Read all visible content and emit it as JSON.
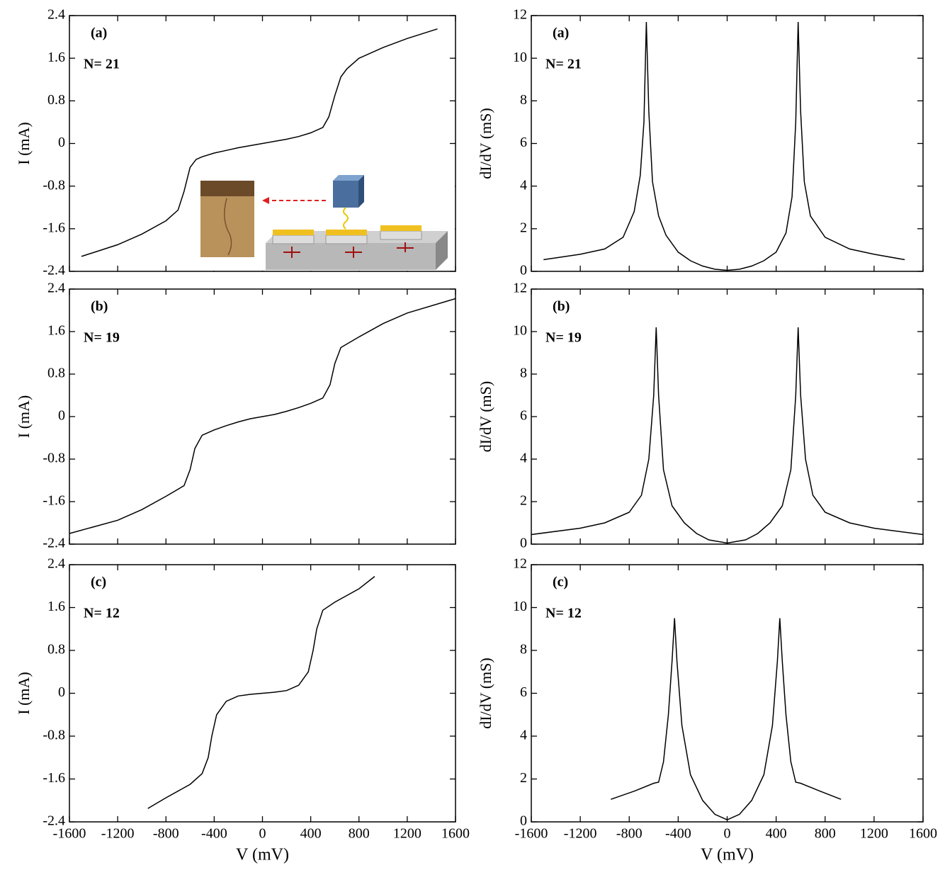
{
  "chart_data": [
    {
      "type": "line",
      "panel_label": "(a)",
      "n_label": "N= 21",
      "ylabel": "I (mA)",
      "xlim": [
        -1600,
        1600
      ],
      "xticks": [
        -1600,
        -1200,
        -800,
        -400,
        0,
        400,
        800,
        1200,
        1600
      ],
      "ylim": [
        -2.4,
        2.4
      ],
      "yticks": [
        -2.4,
        -1.6,
        -0.8,
        0,
        0.8,
        1.6,
        2.4
      ],
      "color": "#000000",
      "x": [
        -1500,
        -1200,
        -1000,
        -800,
        -700,
        -650,
        -600,
        -550,
        -500,
        -400,
        -300,
        -200,
        -100,
        0,
        100,
        200,
        300,
        400,
        500,
        550,
        600,
        650,
        700,
        800,
        1000,
        1200,
        1450
      ],
      "values": [
        -2.12,
        -1.9,
        -1.7,
        -1.45,
        -1.25,
        -0.9,
        -0.45,
        -0.3,
        -0.25,
        -0.18,
        -0.13,
        -0.08,
        -0.04,
        0,
        0.04,
        0.08,
        0.13,
        0.2,
        0.3,
        0.5,
        0.9,
        1.25,
        1.4,
        1.6,
        1.8,
        1.97,
        2.15
      ]
    },
    {
      "type": "line",
      "panel_label": "(a)",
      "n_label": "N= 21",
      "ylabel": "dI/dV (mS)",
      "xlim": [
        -1600,
        1600
      ],
      "xticks": [
        -1600,
        -1200,
        -800,
        -400,
        0,
        400,
        800,
        1200,
        1600
      ],
      "ylim": [
        0,
        12
      ],
      "yticks": [
        0,
        2,
        4,
        6,
        8,
        10,
        12
      ],
      "color": "#000000",
      "x": [
        -1500,
        -1200,
        -1000,
        -850,
        -760,
        -710,
        -680,
        -660,
        -640,
        -610,
        -560,
        -500,
        -400,
        -300,
        -200,
        -100,
        0,
        100,
        200,
        300,
        400,
        480,
        530,
        560,
        580,
        600,
        630,
        680,
        800,
        1000,
        1200,
        1450
      ],
      "values": [
        0.55,
        0.8,
        1.05,
        1.6,
        2.8,
        4.5,
        7,
        11.7,
        7.5,
        4.2,
        2.6,
        1.7,
        0.9,
        0.5,
        0.25,
        0.1,
        0.05,
        0.1,
        0.25,
        0.5,
        0.9,
        1.8,
        3.5,
        7,
        11.7,
        7.5,
        4.2,
        2.6,
        1.6,
        1.05,
        0.8,
        0.55
      ]
    },
    {
      "type": "line",
      "panel_label": "(b)",
      "n_label": "N= 19",
      "ylabel": "I (mA)",
      "xlim": [
        -1600,
        1600
      ],
      "xticks": [
        -1600,
        -1200,
        -800,
        -400,
        0,
        400,
        800,
        1200,
        1600
      ],
      "ylim": [
        -2.4,
        2.4
      ],
      "yticks": [
        -2.4,
        -1.6,
        -0.8,
        0,
        0.8,
        1.6,
        2.4
      ],
      "color": "#000000",
      "x": [
        -1600,
        -1200,
        -1000,
        -800,
        -650,
        -600,
        -560,
        -500,
        -400,
        -300,
        -200,
        -100,
        0,
        100,
        200,
        300,
        400,
        500,
        560,
        600,
        650,
        800,
        1000,
        1200,
        1600
      ],
      "values": [
        -2.2,
        -1.95,
        -1.75,
        -1.5,
        -1.3,
        -1.0,
        -0.6,
        -0.35,
        -0.25,
        -0.17,
        -0.1,
        -0.04,
        0,
        0.04,
        0.1,
        0.17,
        0.25,
        0.35,
        0.6,
        1.0,
        1.3,
        1.5,
        1.75,
        1.95,
        2.22
      ]
    },
    {
      "type": "line",
      "panel_label": "(b)",
      "n_label": "N= 19",
      "ylabel": "dI/dV (mS)",
      "xlim": [
        -1600,
        1600
      ],
      "xticks": [
        -1600,
        -1200,
        -800,
        -400,
        0,
        400,
        800,
        1200,
        1600
      ],
      "ylim": [
        0,
        12
      ],
      "yticks": [
        0,
        2,
        4,
        6,
        8,
        10,
        12
      ],
      "color": "#000000",
      "x": [
        -1600,
        -1200,
        -1000,
        -800,
        -700,
        -640,
        -600,
        -580,
        -560,
        -520,
        -450,
        -350,
        -250,
        -150,
        0,
        150,
        250,
        350,
        450,
        520,
        560,
        580,
        600,
        640,
        700,
        800,
        1000,
        1200,
        1600
      ],
      "values": [
        0.45,
        0.75,
        1.0,
        1.5,
        2.3,
        4,
        7,
        10.2,
        7,
        3.5,
        1.8,
        1.0,
        0.5,
        0.2,
        0.05,
        0.2,
        0.5,
        1.0,
        1.8,
        3.5,
        7,
        10.2,
        7,
        4,
        2.3,
        1.5,
        1.0,
        0.75,
        0.45
      ]
    },
    {
      "type": "line",
      "panel_label": "(c)",
      "n_label": "N= 12",
      "ylabel": "I (mA)",
      "xlabel": "V (mV)",
      "xlim": [
        -1600,
        1600
      ],
      "xticks": [
        -1600,
        -1200,
        -800,
        -400,
        0,
        400,
        800,
        1200,
        1600
      ],
      "ylim": [
        -2.4,
        2.4
      ],
      "yticks": [
        -2.4,
        -1.6,
        -0.8,
        0,
        0.8,
        1.6,
        2.4
      ],
      "color": "#000000",
      "x": [
        -950,
        -800,
        -600,
        -500,
        -450,
        -420,
        -380,
        -300,
        -200,
        -100,
        0,
        100,
        200,
        300,
        380,
        420,
        450,
        500,
        600,
        800,
        930
      ],
      "values": [
        -2.15,
        -1.95,
        -1.7,
        -1.5,
        -1.2,
        -0.8,
        -0.4,
        -0.15,
        -0.05,
        -0.02,
        0,
        0.02,
        0.05,
        0.15,
        0.4,
        0.8,
        1.2,
        1.55,
        1.7,
        1.95,
        2.18
      ]
    },
    {
      "type": "line",
      "panel_label": "(c)",
      "n_label": "N= 12",
      "ylabel": "dI/dV (mS)",
      "xlabel": "V (mV)",
      "xlim": [
        -1600,
        1600
      ],
      "xticks": [
        -1600,
        -1200,
        -800,
        -400,
        0,
        400,
        800,
        1200,
        1600
      ],
      "ylim": [
        0,
        12
      ],
      "yticks": [
        0,
        2,
        4,
        6,
        8,
        10,
        12
      ],
      "color": "#000000",
      "x": [
        -950,
        -750,
        -600,
        -560,
        -520,
        -480,
        -450,
        -430,
        -410,
        -370,
        -300,
        -200,
        -100,
        0,
        100,
        200,
        300,
        370,
        410,
        430,
        450,
        480,
        520,
        560,
        600,
        750,
        930
      ],
      "values": [
        1.05,
        1.45,
        1.8,
        1.85,
        2.8,
        5,
        7.5,
        9.5,
        7.5,
        4.5,
        2.2,
        1.0,
        0.35,
        0.1,
        0.35,
        1.0,
        2.2,
        4.5,
        7.5,
        9.5,
        7.5,
        5,
        2.8,
        1.85,
        1.8,
        1.45,
        1.05
      ]
    }
  ]
}
